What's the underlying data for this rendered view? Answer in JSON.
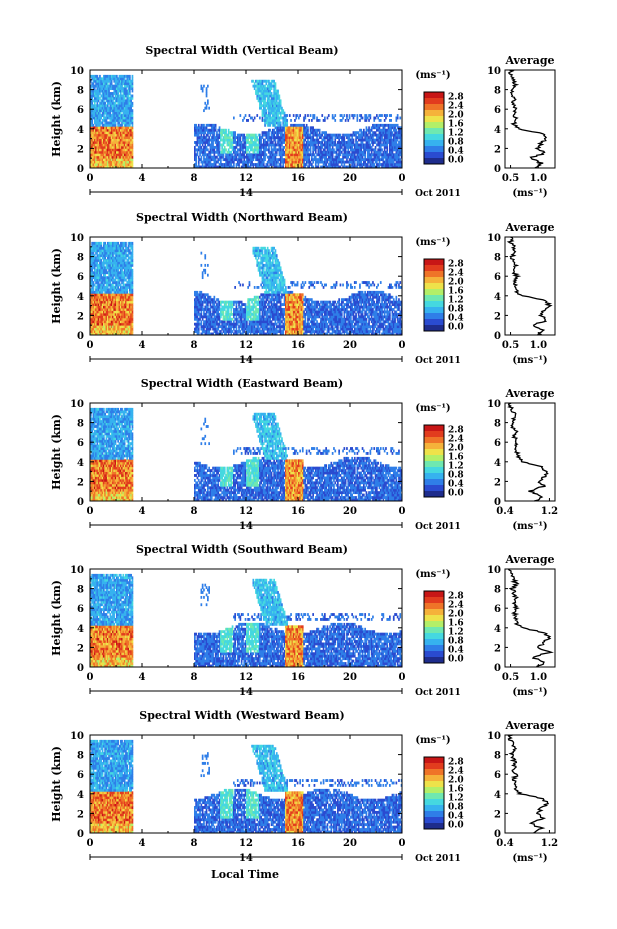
{
  "figure": {
    "xlabel": "Local Time",
    "colorbar_unit": "(ms⁻¹)",
    "colorbar_ticks": [
      "2.8",
      "2.4",
      "2.0",
      "1.6",
      "1.2",
      "0.8",
      "0.4",
      "0.0"
    ],
    "colormap": [
      "#1e2c8c",
      "#2a4bd0",
      "#2f7ee8",
      "#36b2ef",
      "#45d8e0",
      "#6fe8b0",
      "#b3ef68",
      "#eee24a",
      "#f5b23a",
      "#ef7428",
      "#e23c1e",
      "#c81616"
    ],
    "date_label": "Oct 2011",
    "day_label": "14",
    "avg_title": "Average",
    "avg_xlabel": "(ms⁻¹)"
  },
  "chart_data": [
    {
      "type": "heatmap",
      "title": "Spectral Width (Vertical Beam)",
      "ylabel": "Height (km)",
      "x_ticks": [
        "0",
        "4",
        "8",
        "12",
        "16",
        "20",
        "0"
      ],
      "y_ticks": [
        "0",
        "2",
        "4",
        "6",
        "8",
        "10"
      ],
      "xlim": [
        0,
        24
      ],
      "ylim": [
        0,
        10
      ],
      "clim": [
        0.0,
        3.0
      ],
      "data_gaps_hours": [
        [
          3.3,
          8.0
        ]
      ],
      "profile": {
        "title": "Average",
        "xlim": [
          0.4,
          1.3
        ],
        "x_ticks": [
          "0.5",
          "1.0"
        ],
        "heights": [
          0,
          0.5,
          1,
          1.5,
          2,
          2.5,
          3,
          3.5,
          4,
          4.5,
          5,
          5.5,
          6,
          6.5,
          7,
          7.5,
          8,
          8.5,
          9,
          9.5,
          10
        ],
        "values": [
          0.95,
          1.05,
          0.85,
          1.1,
          1.0,
          1.05,
          1.15,
          1.1,
          0.65,
          0.55,
          0.6,
          0.55,
          0.6,
          0.55,
          0.58,
          0.55,
          0.52,
          0.6,
          0.55,
          0.5,
          0.5
        ]
      }
    },
    {
      "type": "heatmap",
      "title": "Spectral Width (Northward Beam)",
      "ylabel": "Height (km)",
      "x_ticks": [
        "0",
        "4",
        "8",
        "12",
        "16",
        "20",
        "0"
      ],
      "y_ticks": [
        "0",
        "2",
        "4",
        "6",
        "8",
        "10"
      ],
      "xlim": [
        0,
        24
      ],
      "ylim": [
        0,
        10
      ],
      "clim": [
        0.0,
        3.0
      ],
      "data_gaps_hours": [
        [
          3.3,
          8.0
        ]
      ],
      "profile": {
        "title": "Average",
        "xlim": [
          0.4,
          1.3
        ],
        "x_ticks": [
          "0.5",
          "1.0"
        ],
        "heights": [
          0,
          0.5,
          1,
          1.5,
          2,
          2.5,
          3,
          3.5,
          4,
          4.5,
          5,
          5.5,
          6,
          6.5,
          7,
          7.5,
          8,
          8.5,
          9,
          9.5,
          10
        ],
        "values": [
          1.0,
          1.1,
          0.9,
          1.15,
          1.05,
          1.1,
          1.2,
          1.15,
          0.7,
          0.6,
          0.6,
          0.58,
          0.62,
          0.55,
          0.6,
          0.57,
          0.52,
          0.6,
          0.55,
          0.5,
          0.5
        ]
      }
    },
    {
      "type": "heatmap",
      "title": "Spectral Width (Eastward Beam)",
      "ylabel": "Height (km)",
      "x_ticks": [
        "0",
        "4",
        "8",
        "12",
        "16",
        "20",
        "0"
      ],
      "y_ticks": [
        "0",
        "2",
        "4",
        "6",
        "8",
        "10"
      ],
      "xlim": [
        0,
        24
      ],
      "ylim": [
        0,
        10
      ],
      "clim": [
        0.0,
        3.0
      ],
      "data_gaps_hours": [
        [
          3.3,
          8.0
        ]
      ],
      "profile": {
        "title": "Average",
        "xlim": [
          0.4,
          1.3
        ],
        "x_ticks": [
          "0.4",
          "1.2"
        ],
        "heights": [
          0,
          0.5,
          1,
          1.5,
          2,
          2.5,
          3,
          3.5,
          4,
          4.5,
          5,
          5.5,
          6,
          6.5,
          7,
          7.5,
          8,
          8.5,
          9,
          9.5,
          10
        ],
        "values": [
          0.95,
          1.05,
          0.85,
          1.1,
          1.0,
          1.1,
          1.15,
          1.05,
          0.7,
          0.65,
          0.62,
          0.58,
          0.6,
          0.57,
          0.6,
          0.55,
          0.52,
          0.58,
          0.55,
          0.5,
          0.5
        ]
      }
    },
    {
      "type": "heatmap",
      "title": "Spectral Width (Southward Beam)",
      "ylabel": "Height (km)",
      "x_ticks": [
        "0",
        "4",
        "8",
        "12",
        "16",
        "20",
        "0"
      ],
      "y_ticks": [
        "0",
        "2",
        "4",
        "6",
        "8",
        "10"
      ],
      "xlim": [
        0,
        24
      ],
      "ylim": [
        0,
        10
      ],
      "clim": [
        0.0,
        3.0
      ],
      "data_gaps_hours": [
        [
          3.3,
          8.0
        ]
      ],
      "profile": {
        "title": "Average",
        "xlim": [
          0.4,
          1.3
        ],
        "x_ticks": [
          "0.5",
          "1.0"
        ],
        "heights": [
          0,
          0.5,
          1,
          1.5,
          2,
          2.5,
          3,
          3.5,
          4,
          4.5,
          5,
          5.5,
          6,
          6.5,
          7,
          7.5,
          8,
          8.5,
          9,
          9.5,
          10
        ],
        "values": [
          1.0,
          1.1,
          0.9,
          1.2,
          1.0,
          1.1,
          1.2,
          1.1,
          0.7,
          0.6,
          0.6,
          0.58,
          0.62,
          0.56,
          0.6,
          0.57,
          0.53,
          0.6,
          0.55,
          0.5,
          0.5
        ]
      }
    },
    {
      "type": "heatmap",
      "title": "Spectral Width (Westward Beam)",
      "ylabel": "Height (km)",
      "x_ticks": [
        "0",
        "4",
        "8",
        "12",
        "16",
        "20",
        "0"
      ],
      "y_ticks": [
        "0",
        "2",
        "4",
        "6",
        "8",
        "10"
      ],
      "xlim": [
        0,
        24
      ],
      "ylim": [
        0,
        10
      ],
      "clim": [
        0.0,
        3.0
      ],
      "data_gaps_hours": [
        [
          3.3,
          8.0
        ]
      ],
      "profile": {
        "title": "Average",
        "xlim": [
          0.4,
          1.3
        ],
        "x_ticks": [
          "0.4",
          "1.2"
        ],
        "heights": [
          0,
          0.5,
          1,
          1.5,
          2,
          2.5,
          3,
          3.5,
          4,
          4.5,
          5,
          5.5,
          6,
          6.5,
          7,
          7.5,
          8,
          8.5,
          9,
          9.5,
          10
        ],
        "values": [
          0.95,
          1.05,
          0.85,
          1.1,
          1.0,
          1.05,
          1.15,
          1.1,
          0.68,
          0.6,
          0.6,
          0.57,
          0.6,
          0.55,
          0.58,
          0.55,
          0.52,
          0.58,
          0.54,
          0.5,
          0.5
        ]
      }
    }
  ]
}
